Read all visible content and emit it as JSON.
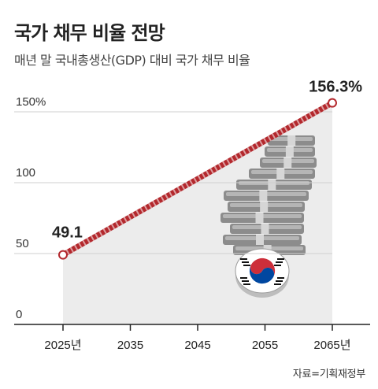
{
  "header": {
    "title": "국가 채무 비율 전망",
    "subtitle": "매년 말 국내총생산(GDP) 대비 국가 채무 비율"
  },
  "source": "자료=기획재정부",
  "colors": {
    "line": "#b3282d",
    "area": "#ececec",
    "axis": "#222222",
    "grid": "#cfcfcf"
  },
  "chart_data": {
    "type": "line",
    "x": [
      2025,
      2065
    ],
    "y_ticks": [
      0,
      50,
      100,
      150
    ],
    "y_tick_labels": [
      "0",
      "50",
      "100",
      "150%"
    ],
    "x_ticks": [
      2025,
      2035,
      2045,
      2055,
      2065
    ],
    "x_tick_labels": [
      "2025년",
      "2035",
      "2045",
      "2055",
      "2065년"
    ],
    "ylim": [
      0,
      160
    ],
    "xlim": [
      2025,
      2065
    ],
    "grid": true,
    "series": [
      {
        "values": [
          49.1,
          156.3
        ],
        "labels": [
          "49.1",
          "156.3%"
        ]
      }
    ]
  }
}
